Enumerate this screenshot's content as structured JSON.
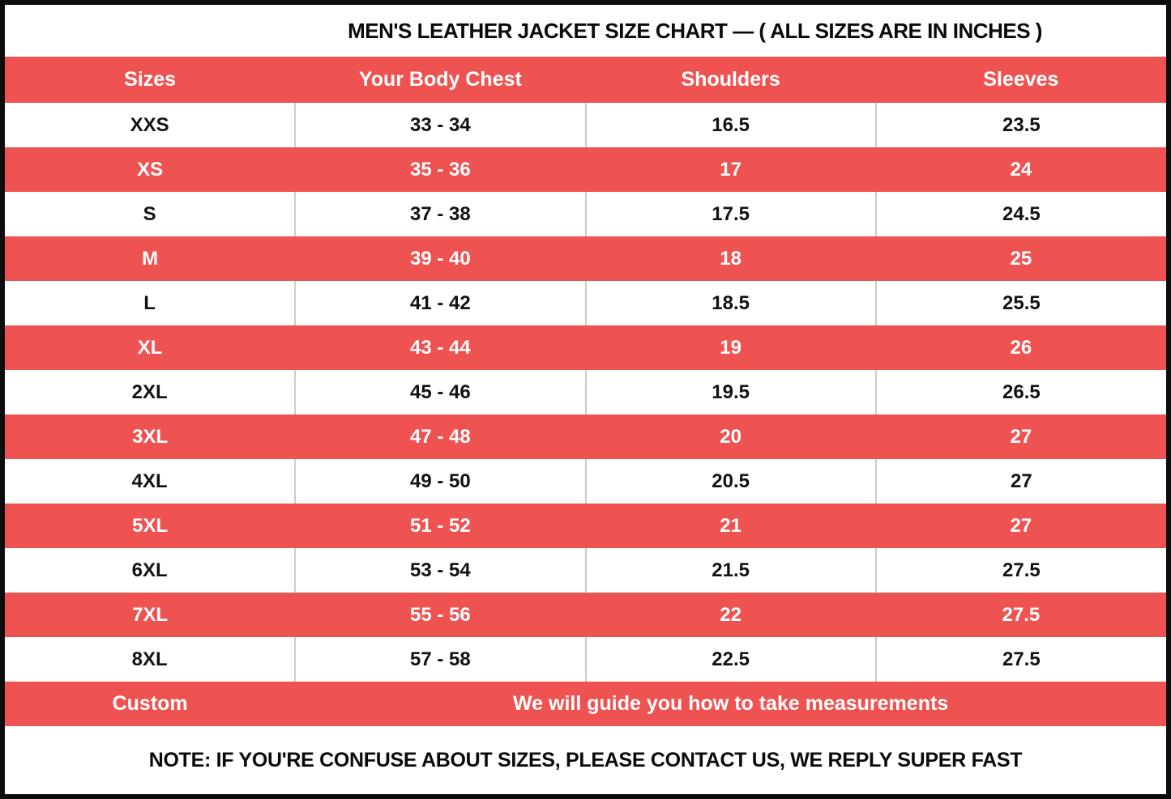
{
  "chart_data": {
    "type": "table",
    "title": "MEN'S LEATHER JACKET SIZE CHART — ( ALL SIZES ARE IN INCHES )",
    "columns": [
      "Sizes",
      "Your Body Chest",
      "Shoulders",
      "Sleeves"
    ],
    "rows": [
      [
        "XXS",
        "33 - 34",
        "16.5",
        "23.5"
      ],
      [
        "XS",
        "35 - 36",
        "17",
        "24"
      ],
      [
        "S",
        "37 - 38",
        "17.5",
        "24.5"
      ],
      [
        "M",
        "39 - 40",
        "18",
        "25"
      ],
      [
        "L",
        "41 - 42",
        "18.5",
        "25.5"
      ],
      [
        "XL",
        "43 - 44",
        "19",
        "26"
      ],
      [
        "2XL",
        "45 - 46",
        "19.5",
        "26.5"
      ],
      [
        "3XL",
        "47 - 48",
        "20",
        "27"
      ],
      [
        "4XL",
        "49 - 50",
        "20.5",
        "27"
      ],
      [
        "5XL",
        "51 - 52",
        "21",
        "27"
      ],
      [
        "6XL",
        "53 - 54",
        "21.5",
        "27.5"
      ],
      [
        "7XL",
        "55 - 56",
        "22",
        "27.5"
      ],
      [
        "8XL",
        "57 - 58",
        "22.5",
        "27.5"
      ]
    ],
    "custom_row": {
      "label": "Custom",
      "message": "We will guide you how to take measurements"
    },
    "note": "NOTE: IF YOU'RE CONFUSE ABOUT SIZES, PLEASE CONTACT US, WE REPLY SUPER FAST",
    "layout_hints": {
      "row_striping": "alternating white and red starting with white",
      "grid": "vertical dividers on white rows only"
    }
  },
  "colors": {
    "accent_red": "#EE5352",
    "border_black": "#0d0d0d",
    "divider_gray": "#cccccc",
    "text_dark": "#121212",
    "text_light": "#ffffff"
  }
}
